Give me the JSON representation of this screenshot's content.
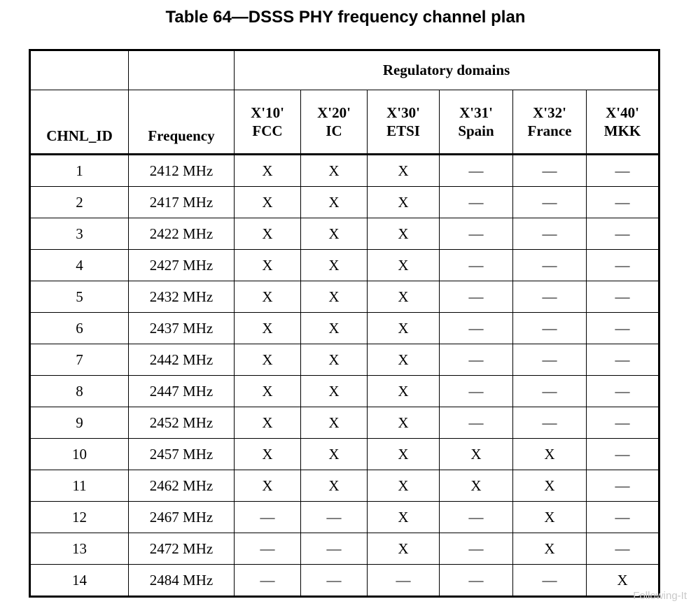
{
  "caption": "Table 64—DSSS PHY frequency channel plan",
  "header": {
    "group_label": "Regulatory domains",
    "chnl_id": "CHNL_ID",
    "frequency": "Frequency",
    "domains": [
      {
        "code": "X'10'",
        "name": "FCC"
      },
      {
        "code": "X'20'",
        "name": "IC"
      },
      {
        "code": "X'30'",
        "name": "ETSI"
      },
      {
        "code": "X'31'",
        "name": "Spain"
      },
      {
        "code": "X'32'",
        "name": "France"
      },
      {
        "code": "X'40'",
        "name": "MKK"
      }
    ]
  },
  "rows": [
    {
      "id": "1",
      "freq": "2412 MHz",
      "cells": [
        "X",
        "X",
        "X",
        "—",
        "—",
        "—"
      ]
    },
    {
      "id": "2",
      "freq": "2417 MHz",
      "cells": [
        "X",
        "X",
        "X",
        "—",
        "—",
        "—"
      ]
    },
    {
      "id": "3",
      "freq": "2422 MHz",
      "cells": [
        "X",
        "X",
        "X",
        "—",
        "—",
        "—"
      ]
    },
    {
      "id": "4",
      "freq": "2427 MHz",
      "cells": [
        "X",
        "X",
        "X",
        "—",
        "—",
        "—"
      ]
    },
    {
      "id": "5",
      "freq": "2432 MHz",
      "cells": [
        "X",
        "X",
        "X",
        "—",
        "—",
        "—"
      ]
    },
    {
      "id": "6",
      "freq": "2437 MHz",
      "cells": [
        "X",
        "X",
        "X",
        "—",
        "—",
        "—"
      ]
    },
    {
      "id": "7",
      "freq": "2442 MHz",
      "cells": [
        "X",
        "X",
        "X",
        "—",
        "—",
        "—"
      ]
    },
    {
      "id": "8",
      "freq": "2447 MHz",
      "cells": [
        "X",
        "X",
        "X",
        "—",
        "—",
        "—"
      ]
    },
    {
      "id": "9",
      "freq": "2452 MHz",
      "cells": [
        "X",
        "X",
        "X",
        "—",
        "—",
        "—"
      ]
    },
    {
      "id": "10",
      "freq": "2457 MHz",
      "cells": [
        "X",
        "X",
        "X",
        "X",
        "X",
        "—"
      ]
    },
    {
      "id": "11",
      "freq": "2462 MHz",
      "cells": [
        "X",
        "X",
        "X",
        "X",
        "X",
        "—"
      ]
    },
    {
      "id": "12",
      "freq": "2467 MHz",
      "cells": [
        "—",
        "—",
        "X",
        "—",
        "X",
        "—"
      ]
    },
    {
      "id": "13",
      "freq": "2472 MHz",
      "cells": [
        "—",
        "—",
        "X",
        "—",
        "X",
        "—"
      ]
    },
    {
      "id": "14",
      "freq": "2484 MHz",
      "cells": [
        "—",
        "—",
        "—",
        "—",
        "—",
        "X"
      ]
    }
  ],
  "watermark": "Following-It"
}
